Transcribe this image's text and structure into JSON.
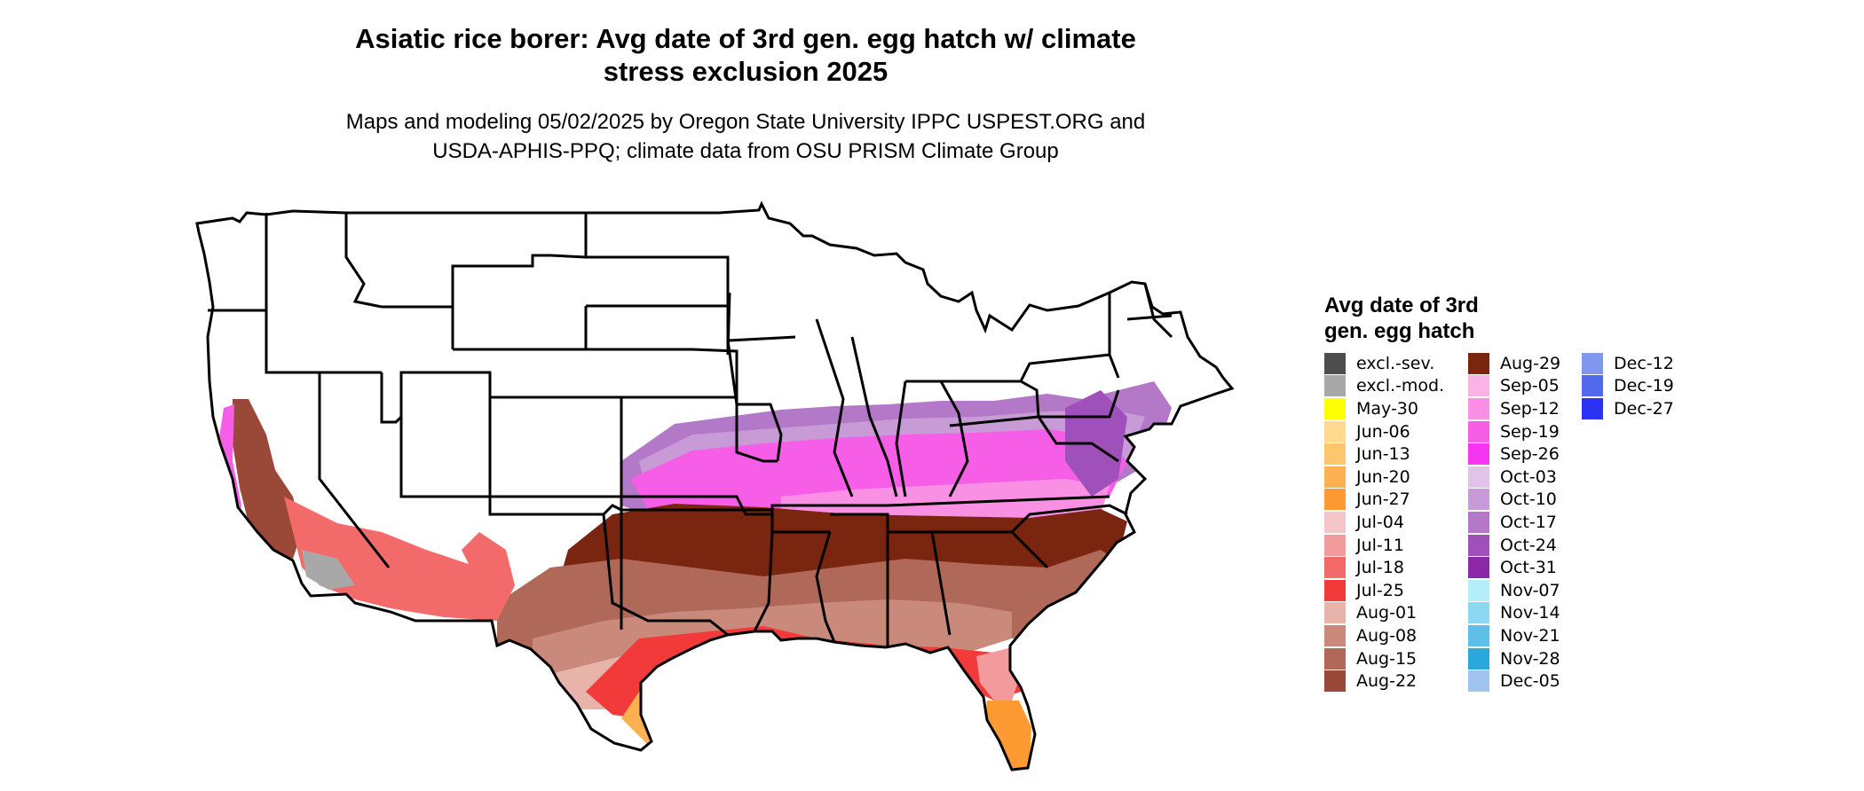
{
  "header": {
    "title_line1": "Asiatic rice borer: Avg date of 3rd gen. egg hatch w/ climate",
    "title_line2": "stress exclusion 2025",
    "subtitle_line1": "Maps and modeling 05/02/2025 by Oregon State University IPPC USPEST.ORG and",
    "subtitle_line2": "USDA-APHIS-PPQ; climate data from OSU PRISM Climate Group"
  },
  "legend": {
    "title_line1": "Avg date of 3rd",
    "title_line2": "gen. egg hatch",
    "col1": [
      {
        "label": "excl.-sev.",
        "color": "#4d4d4d"
      },
      {
        "label": "excl.-mod.",
        "color": "#a8a8a8"
      },
      {
        "label": "May-30",
        "color": "#ffff00"
      },
      {
        "label": "Jun-06",
        "color": "#ffd98c"
      },
      {
        "label": "Jun-13",
        "color": "#ffc66e"
      },
      {
        "label": "Jun-20",
        "color": "#ffb050"
      },
      {
        "label": "Jun-27",
        "color": "#ff9a32"
      },
      {
        "label": "Jul-04",
        "color": "#f5c6c8"
      },
      {
        "label": "Jul-11",
        "color": "#f29a9c"
      },
      {
        "label": "Jul-18",
        "color": "#f36a6a"
      },
      {
        "label": "Jul-25",
        "color": "#f23a3a"
      },
      {
        "label": "Aug-01",
        "color": "#e8b4aa"
      },
      {
        "label": "Aug-08",
        "color": "#c98a7c"
      },
      {
        "label": "Aug-15",
        "color": "#b06858"
      },
      {
        "label": "Aug-22",
        "color": "#9a4838"
      }
    ],
    "col2": [
      {
        "label": "Aug-29",
        "color": "#7a2510"
      },
      {
        "label": "Sep-05",
        "color": "#fbb2e4"
      },
      {
        "label": "Sep-12",
        "color": "#f990e4"
      },
      {
        "label": "Sep-19",
        "color": "#f75ee8"
      },
      {
        "label": "Sep-26",
        "color": "#f535f0"
      },
      {
        "label": "Oct-03",
        "color": "#e0c4e8"
      },
      {
        "label": "Oct-10",
        "color": "#c89ad6"
      },
      {
        "label": "Oct-17",
        "color": "#b478c8"
      },
      {
        "label": "Oct-24",
        "color": "#a050ba"
      },
      {
        "label": "Oct-31",
        "color": "#8a28a8"
      },
      {
        "label": "Nov-07",
        "color": "#b4eefa"
      },
      {
        "label": "Nov-14",
        "color": "#8cd8f2"
      },
      {
        "label": "Nov-21",
        "color": "#5ec0e8"
      },
      {
        "label": "Nov-28",
        "color": "#2aa8dc"
      },
      {
        "label": "Dec-05",
        "color": "#a0c4ee"
      }
    ],
    "col3": [
      {
        "label": "Dec-12",
        "color": "#7f98ee"
      },
      {
        "label": "Dec-19",
        "color": "#5468ee"
      },
      {
        "label": "Dec-27",
        "color": "#2b32f2"
      }
    ]
  }
}
